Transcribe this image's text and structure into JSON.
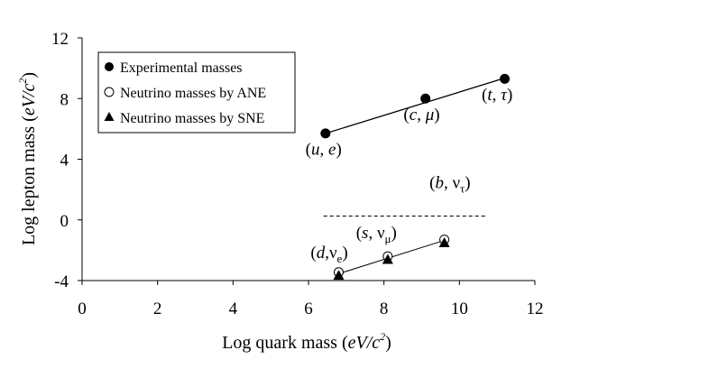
{
  "chart_data": {
    "type": "scatter",
    "title": "",
    "xlabel": "Log quark mass (eV/c²)",
    "xlabel_main": "Log quark mass (",
    "xlabel_unit": "eV/c",
    "xlabel_exp": "2",
    "xlabel_close": ")",
    "ylabel": "Log lepton mass (eV/c²)",
    "ylabel_main": "Log lepton mass (",
    "ylabel_unit": "eV/c",
    "ylabel_exp": "2",
    "ylabel_close": ")",
    "xlim": [
      0,
      12
    ],
    "ylim": [
      -4,
      12
    ],
    "x_ticks": [
      0,
      2,
      4,
      6,
      8,
      10,
      12
    ],
    "y_ticks": [
      -4,
      0,
      4,
      8,
      12
    ],
    "legend_position": "top-left",
    "series": [
      {
        "name": "Experimental masses",
        "marker": "filled-circle",
        "points": [
          {
            "x": 6.45,
            "y": 5.7
          },
          {
            "x": 9.1,
            "y": 8.0
          },
          {
            "x": 11.2,
            "y": 9.3
          }
        ],
        "fit_line": [
          [
            6.45,
            5.7
          ],
          [
            11.2,
            9.35
          ]
        ]
      },
      {
        "name": "Neutrino masses by ANE",
        "marker": "open-circle",
        "points": [
          {
            "x": 6.8,
            "y": -3.45
          },
          {
            "x": 8.1,
            "y": -2.4
          },
          {
            "x": 9.6,
            "y": -1.3
          }
        ],
        "fit_line": [
          [
            6.8,
            -3.55
          ],
          [
            9.6,
            -1.35
          ]
        ]
      },
      {
        "name": "Neutrino masses by SNE",
        "marker": "filled-triangle",
        "points": [
          {
            "x": 6.8,
            "y": -3.65
          },
          {
            "x": 8.1,
            "y": -2.6
          },
          {
            "x": 9.6,
            "y": -1.5
          }
        ]
      }
    ],
    "reference_line": {
      "style": "dashed",
      "y": 0.25,
      "x_start": 6.4,
      "x_end": 10.7
    },
    "annotations": [
      {
        "id": "u-e",
        "open": "(",
        "a": "u",
        "sep": ", ",
        "b": "e",
        "sub": "",
        "close": ")",
        "x": 6.4,
        "y": 4.3
      },
      {
        "id": "c-mu",
        "open": "(",
        "a": "c",
        "sep": ", ",
        "b": "μ",
        "sub": "",
        "close": ")",
        "x": 9.0,
        "y": 6.6
      },
      {
        "id": "t-tau",
        "open": "(",
        "a": "t",
        "sep": ", ",
        "b": "τ",
        "sub": "",
        "close": ")",
        "x": 11.0,
        "y": 7.9
      },
      {
        "id": "b-nutau",
        "open": "(",
        "a": "b",
        "sep": ", ",
        "b": "ν",
        "sub": "τ",
        "close": ")",
        "x": 9.75,
        "y": 2.1
      },
      {
        "id": "s-numu",
        "open": "(",
        "a": "s",
        "sep": ", ",
        "b": "ν",
        "sub": "μ",
        "close": ")",
        "x": 7.8,
        "y": -1.2
      },
      {
        "id": "d-nue",
        "open": "(",
        "a": "d",
        "sep": ",",
        "b": "ν",
        "sub": "e",
        "close": ")",
        "x": 6.55,
        "y": -2.5
      }
    ]
  }
}
